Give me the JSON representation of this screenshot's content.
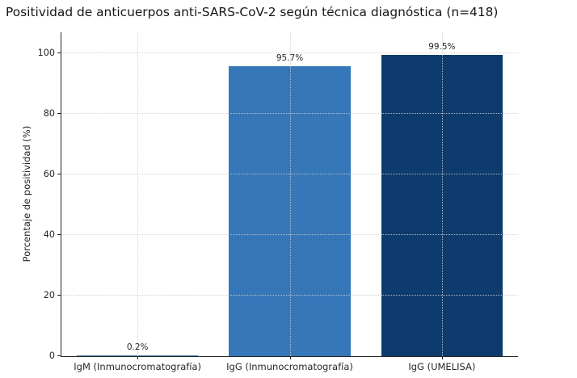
{
  "chart_data": {
    "type": "bar",
    "title": "Positividad de anticuerpos anti-SARS-CoV-2 según técnica diagnóstica (n=418)",
    "ylabel": "Porcentaje de positividad (%)",
    "xlabel": "",
    "categories": [
      "IgM (Inmunocromatografía)",
      "IgG (Inmunocromatografía)",
      "IgG (UMELISA)"
    ],
    "values": [
      0.2,
      95.7,
      99.5
    ],
    "value_labels": [
      "0.2%",
      "95.7%",
      "99.5%"
    ],
    "bar_colors": [
      "#3577b8",
      "#3577b8",
      "#0d3b6e"
    ],
    "ylim": [
      0,
      107
    ],
    "yticks": [
      0,
      20,
      40,
      60,
      80,
      100
    ],
    "grid": "dotted horizontal and vertical, drawn over bars",
    "legend": "none"
  },
  "colors": {
    "background": "#ffffff",
    "axis": "#262626",
    "text": "#262626",
    "grid": "#cdcdcd",
    "bar_medium_blue": "#3577b8",
    "bar_dark_navy": "#0d3b6e"
  }
}
